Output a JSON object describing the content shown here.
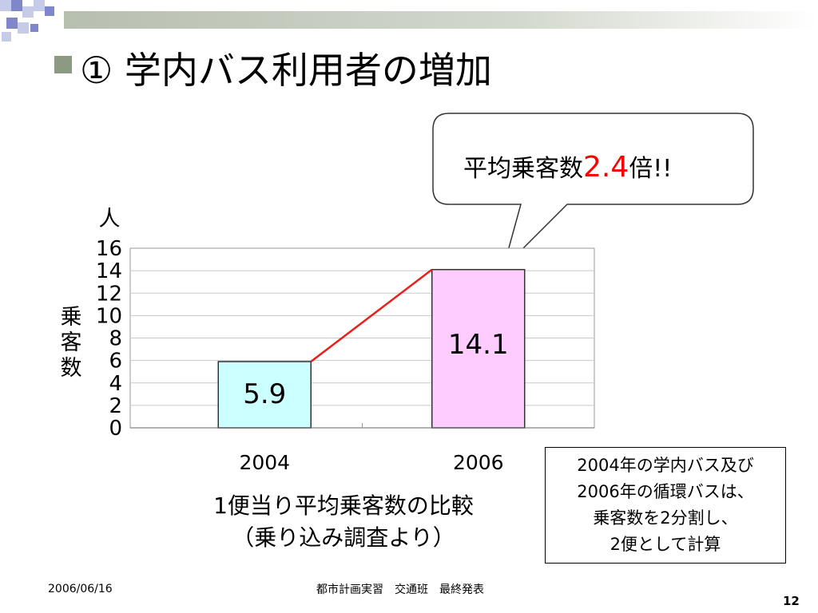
{
  "title": "① 学内バス利用者の増加",
  "callout": {
    "prefix": "平均乗客数",
    "highlight": "2.4",
    "suffix": "倍!!"
  },
  "chart_data": {
    "type": "bar",
    "categories": [
      "2004",
      "2006"
    ],
    "values": [
      5.9,
      14.1
    ],
    "data_labels": [
      "5.9",
      "14.1"
    ],
    "bar_colors": [
      "#ccffff",
      "#ffccff"
    ],
    "connector_color": "#e8201c",
    "unit_label": "人",
    "ylabel": "乗客数",
    "ylim": [
      0,
      16
    ],
    "yticks": [
      "0",
      "2",
      "4",
      "6",
      "8",
      "10",
      "12",
      "14",
      "16"
    ],
    "grid": true,
    "caption_lines": [
      "1便当り平均乗客数の比較",
      "（乗り込み調査より）"
    ]
  },
  "note_lines": [
    "2004年の学内バス及び",
    "2006年の循環バスは、",
    "乗客数を2分割し、",
    "2便として計算"
  ],
  "footer": {
    "date": "2006/06/16",
    "center": "都市計画実習　交通班　最終発表",
    "page": "12"
  },
  "colors": {
    "accent_bullet": "#8c9a84",
    "deco_blue": "#7f86c9",
    "deco_light": "#c6cbe8"
  }
}
